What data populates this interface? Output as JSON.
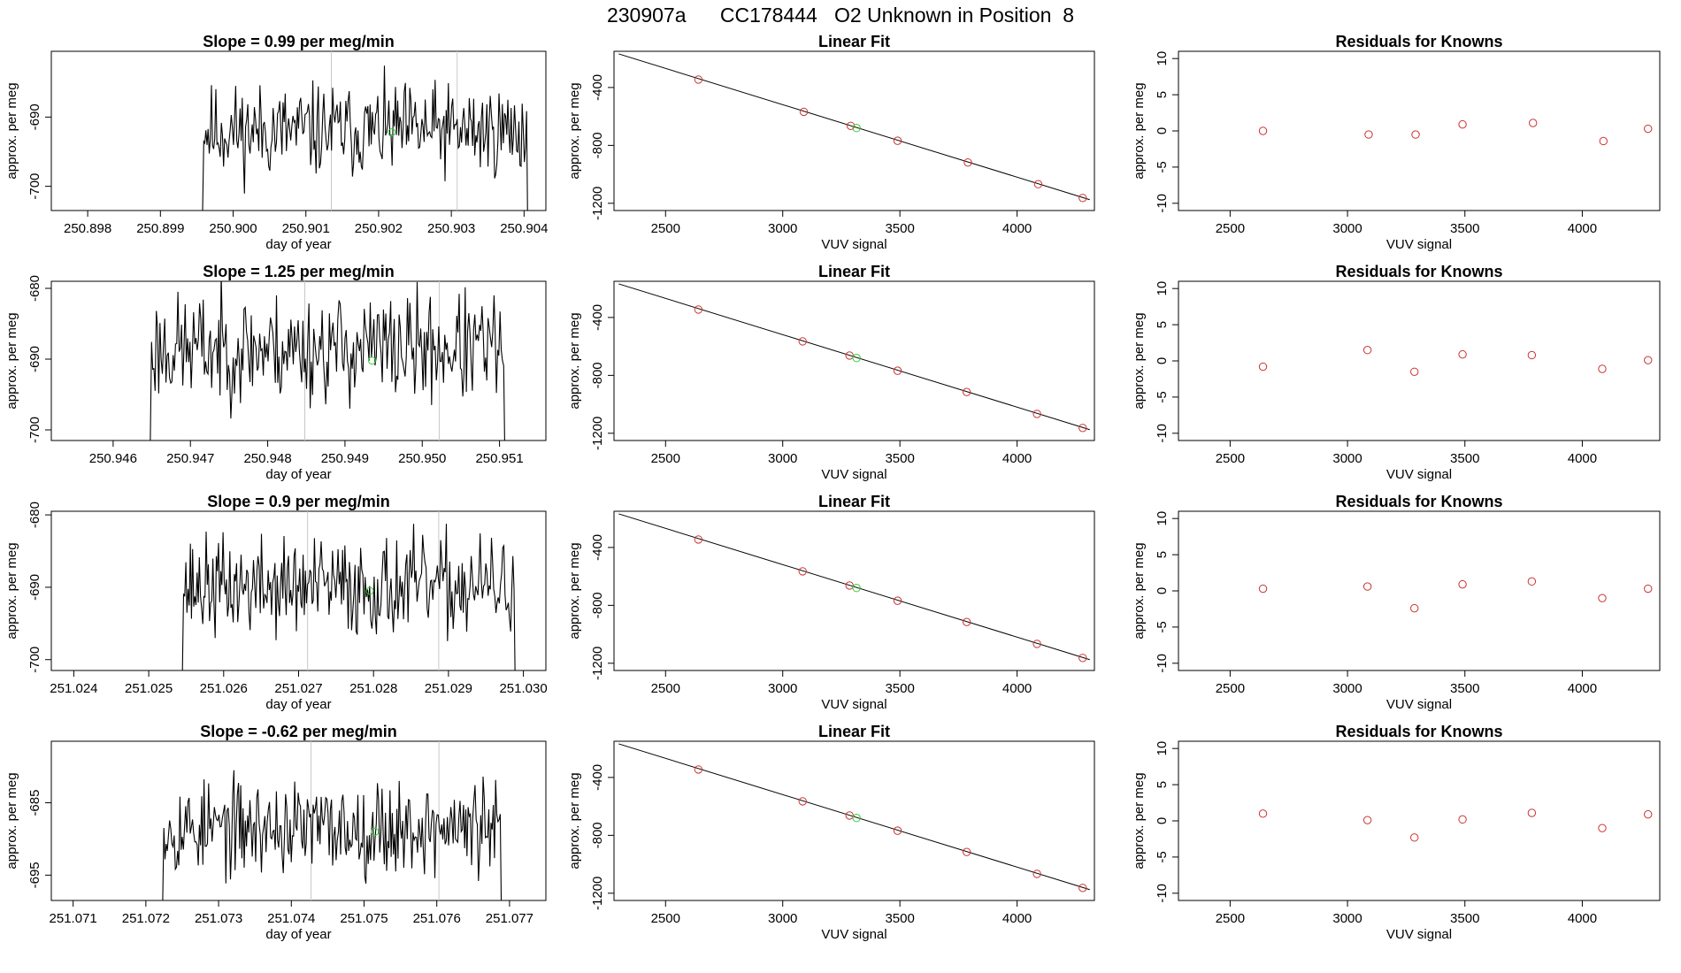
{
  "page_title": "230907a      CC178444   O2 Unknown in Position  8",
  "colors": {
    "trace": "#000000",
    "known_point": "#cd3333",
    "unknown_point": "#33cc33",
    "frame": "#000000",
    "vline": "#c8c8c8"
  },
  "chart_data": [
    {
      "type": "line",
      "row": 0,
      "col": 0,
      "title": "Slope =  0.99  per meg/min",
      "xlabel": "day of year",
      "ylabel": "approx. per meg",
      "xlim": [
        250.8975,
        250.9043
      ],
      "ylim": [
        -703.5,
        -680.5
      ],
      "xticks": [
        "250.898",
        "250.899",
        "250.900",
        "250.901",
        "250.902",
        "250.903",
        "250.904"
      ],
      "yticks": [
        "-700",
        "-690"
      ],
      "vlines": [
        250.90135,
        250.90308
      ],
      "unknown_point": {
        "x": 250.90218,
        "y": -692.2
      },
      "series": [
        {
          "x_start": 250.89955,
          "x_end": 250.90408,
          "mean": -692,
          "amplitude": 3.3,
          "min_clip": -703.5,
          "max_clip": -680.5,
          "seed": 11,
          "n": 300
        }
      ]
    },
    {
      "type": "scatter",
      "row": 0,
      "col": 1,
      "title": "Linear Fit",
      "xlabel": "VUV signal",
      "ylabel": "approx. per meg",
      "xlim": [
        2280,
        4330
      ],
      "ylim": [
        -1250,
        -150
      ],
      "xticks": [
        "2500",
        "3000",
        "3500",
        "4000"
      ],
      "yticks": [
        "-1200",
        "-800",
        "-400"
      ],
      "fit_line": {
        "x": [
          2300,
          4310
        ],
        "y": [
          -168,
          -1175
        ]
      },
      "known_points": {
        "x": [
          2640,
          3090,
          3290,
          3490,
          3790,
          4090,
          4280
        ],
        "y": [
          -345,
          -568,
          -665,
          -768,
          -918,
          -1068,
          -1163
        ]
      },
      "unknown_point": {
        "x": 3315,
        "y": -680
      }
    },
    {
      "type": "scatter",
      "row": 0,
      "col": 2,
      "title": "Residuals for Knowns",
      "xlabel": "VUV signal",
      "ylabel": "approx. per meg",
      "xlim": [
        2280,
        4330
      ],
      "ylim": [
        -11,
        11
      ],
      "xticks": [
        "2500",
        "3000",
        "3500",
        "4000"
      ],
      "yticks": [
        "-10",
        "-5",
        "0",
        "5",
        "10"
      ],
      "points": {
        "x": [
          2640,
          3090,
          3290,
          3490,
          3790,
          4090,
          4280
        ],
        "y": [
          0.0,
          -0.5,
          -0.5,
          0.9,
          1.1,
          -1.4,
          0.3
        ]
      }
    },
    {
      "type": "line",
      "row": 1,
      "col": 0,
      "title": "Slope =  1.25  per meg/min",
      "xlabel": "day of year",
      "ylabel": "approx. per meg",
      "xlim": [
        250.9452,
        250.9516
      ],
      "ylim": [
        -701.5,
        -679
      ],
      "xticks": [
        "250.946",
        "250.947",
        "250.948",
        "250.949",
        "250.950",
        "250.951"
      ],
      "yticks": [
        "-700",
        "-690",
        "-680"
      ],
      "vlines": [
        250.94848,
        250.95022
      ],
      "unknown_point": {
        "x": 250.94935,
        "y": -690.2
      },
      "series": [
        {
          "x_start": 250.94645,
          "x_end": 250.9511,
          "mean": -688.5,
          "amplitude": 3.8,
          "min_clip": -701.5,
          "max_clip": -679,
          "seed": 23,
          "n": 300
        }
      ]
    },
    {
      "type": "scatter",
      "row": 1,
      "col": 1,
      "title": "Linear Fit",
      "xlabel": "VUV signal",
      "ylabel": "approx. per meg",
      "xlim": [
        2280,
        4330
      ],
      "ylim": [
        -1250,
        -150
      ],
      "xticks": [
        "2500",
        "3000",
        "3500",
        "4000"
      ],
      "yticks": [
        "-1200",
        "-800",
        "-400"
      ],
      "fit_line": {
        "x": [
          2300,
          4310
        ],
        "y": [
          -168,
          -1175
        ]
      },
      "known_points": {
        "x": [
          2640,
          3085,
          3285,
          3490,
          3785,
          4085,
          4280
        ],
        "y": [
          -345,
          -565,
          -663,
          -768,
          -915,
          -1066,
          -1163
        ]
      },
      "unknown_point": {
        "x": 3315,
        "y": -680
      }
    },
    {
      "type": "scatter",
      "row": 1,
      "col": 2,
      "title": "Residuals for Knowns",
      "xlabel": "VUV signal",
      "ylabel": "approx. per meg",
      "xlim": [
        2280,
        4330
      ],
      "ylim": [
        -11,
        11
      ],
      "xticks": [
        "2500",
        "3000",
        "3500",
        "4000"
      ],
      "yticks": [
        "-10",
        "-5",
        "0",
        "5",
        "10"
      ],
      "points": {
        "x": [
          2640,
          3085,
          3285,
          3490,
          3785,
          4085,
          4280
        ],
        "y": [
          -0.8,
          1.5,
          -1.5,
          0.9,
          0.8,
          -1.1,
          0.1
        ]
      }
    },
    {
      "type": "line",
      "row": 2,
      "col": 0,
      "title": "Slope =  0.9  per meg/min",
      "xlabel": "day of year",
      "ylabel": "approx. per meg",
      "xlim": [
        251.0237,
        251.0303
      ],
      "ylim": [
        -701.5,
        -679.5
      ],
      "xticks": [
        "251.024",
        "251.025",
        "251.026",
        "251.027",
        "251.028",
        "251.029",
        "251.030"
      ],
      "yticks": [
        "-700",
        "-690",
        "-680"
      ],
      "vlines": [
        251.02712,
        251.02887
      ],
      "unknown_point": {
        "x": 251.02795,
        "y": -690.5
      },
      "series": [
        {
          "x_start": 251.02542,
          "x_end": 251.02992,
          "mean": -690,
          "amplitude": 3.4,
          "min_clip": -701.5,
          "max_clip": -679.5,
          "seed": 37,
          "n": 300
        }
      ]
    },
    {
      "type": "scatter",
      "row": 2,
      "col": 1,
      "title": "Linear Fit",
      "xlabel": "VUV signal",
      "ylabel": "approx. per meg",
      "xlim": [
        2280,
        4330
      ],
      "ylim": [
        -1250,
        -150
      ],
      "xticks": [
        "2500",
        "3000",
        "3500",
        "4000"
      ],
      "yticks": [
        "-1200",
        "-800",
        "-400"
      ],
      "fit_line": {
        "x": [
          2300,
          4310
        ],
        "y": [
          -168,
          -1175
        ]
      },
      "known_points": {
        "x": [
          2640,
          3085,
          3285,
          3490,
          3785,
          4085,
          4280
        ],
        "y": [
          -345,
          -565,
          -663,
          -768,
          -915,
          -1066,
          -1163
        ]
      },
      "unknown_point": {
        "x": 3315,
        "y": -680
      }
    },
    {
      "type": "scatter",
      "row": 2,
      "col": 2,
      "title": "Residuals for Knowns",
      "xlabel": "VUV signal",
      "ylabel": "approx. per meg",
      "xlim": [
        2280,
        4330
      ],
      "ylim": [
        -11,
        11
      ],
      "xticks": [
        "2500",
        "3000",
        "3500",
        "4000"
      ],
      "yticks": [
        "-10",
        "-5",
        "0",
        "5",
        "10"
      ],
      "points": {
        "x": [
          2640,
          3085,
          3285,
          3490,
          3785,
          4085,
          4280
        ],
        "y": [
          0.3,
          0.6,
          -2.4,
          0.9,
          1.3,
          -1.0,
          0.3
        ]
      }
    },
    {
      "type": "line",
      "row": 3,
      "col": 0,
      "title": "Slope =  -0.62  per meg/min",
      "xlabel": "day of year",
      "ylabel": "approx. per meg",
      "xlim": [
        251.0707,
        251.0775
      ],
      "ylim": [
        -698.5,
        -676.5
      ],
      "xticks": [
        "251.071",
        "251.072",
        "251.073",
        "251.074",
        "251.075",
        "251.076",
        "251.077"
      ],
      "yticks": [
        "-695",
        "-685"
      ],
      "vlines": [
        251.07427,
        251.07603
      ],
      "unknown_point": {
        "x": 251.07515,
        "y": -689
      },
      "series": [
        {
          "x_start": 251.0722,
          "x_end": 251.07692,
          "mean": -688.5,
          "amplitude": 3.2,
          "min_clip": -698.5,
          "max_clip": -676.5,
          "seed": 53,
          "n": 300
        }
      ]
    },
    {
      "type": "scatter",
      "row": 3,
      "col": 1,
      "title": "Linear Fit",
      "xlabel": "VUV signal",
      "ylabel": "approx. per meg",
      "xlim": [
        2280,
        4330
      ],
      "ylim": [
        -1250,
        -150
      ],
      "xticks": [
        "2500",
        "3000",
        "3500",
        "4000"
      ],
      "yticks": [
        "-1200",
        "-800",
        "-400"
      ],
      "fit_line": {
        "x": [
          2300,
          4310
        ],
        "y": [
          -168,
          -1175
        ]
      },
      "known_points": {
        "x": [
          2640,
          3085,
          3285,
          3490,
          3785,
          4085,
          4280
        ],
        "y": [
          -345,
          -565,
          -663,
          -768,
          -915,
          -1066,
          -1163
        ]
      },
      "unknown_point": {
        "x": 3315,
        "y": -680
      }
    },
    {
      "type": "scatter",
      "row": 3,
      "col": 2,
      "title": "Residuals for Knowns",
      "xlabel": "VUV signal",
      "ylabel": "approx. per meg",
      "xlim": [
        2280,
        4330
      ],
      "ylim": [
        -11,
        11
      ],
      "xticks": [
        "2500",
        "3000",
        "3500",
        "4000"
      ],
      "yticks": [
        "-10",
        "-5",
        "0",
        "5",
        "10"
      ],
      "points": {
        "x": [
          2640,
          3085,
          3285,
          3490,
          3785,
          4085,
          4280
        ],
        "y": [
          1.0,
          0.1,
          -2.3,
          0.2,
          1.1,
          -1.0,
          0.9
        ]
      }
    }
  ]
}
